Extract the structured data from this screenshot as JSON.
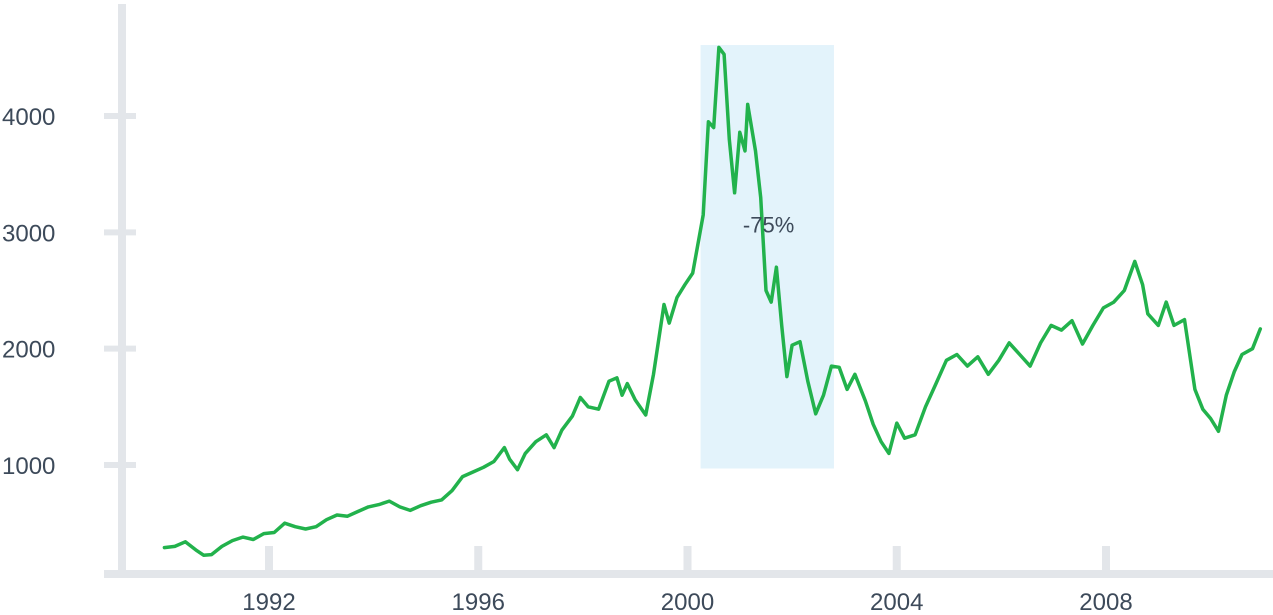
{
  "chart_data": {
    "type": "line",
    "title": "",
    "xlabel": "",
    "ylabel": "",
    "xlim": [
      1989.8,
      2010.4
    ],
    "ylim": [
      0,
      4900
    ],
    "x_ticks": [
      {
        "value": 1992,
        "label": "1992"
      },
      {
        "value": 1996,
        "label": "1996"
      },
      {
        "value": 2000,
        "label": "2000"
      },
      {
        "value": 2004,
        "label": "2004"
      },
      {
        "value": 2008,
        "label": "2008"
      }
    ],
    "y_ticks": [
      {
        "value": 1000,
        "label": "1000"
      },
      {
        "value": 2000,
        "label": "2000"
      },
      {
        "value": 3000,
        "label": "3000"
      },
      {
        "value": 4000,
        "label": "4000"
      }
    ],
    "grid": false,
    "colors": {
      "line": "#22b24c",
      "axis": "#e3e6ea",
      "highlight": "#e3f3fb",
      "text": "#3d4a5a"
    },
    "highlight_region": {
      "x_start": 2000.25,
      "x_end": 2002.8,
      "y_bottom": 970,
      "y_top": 4610,
      "label": "-75%",
      "label_x": 2001.55,
      "label_y": 3000
    },
    "series": [
      {
        "name": "",
        "points": [
          [
            1990.0,
            290
          ],
          [
            1990.2,
            300
          ],
          [
            1990.4,
            340
          ],
          [
            1990.6,
            270
          ],
          [
            1990.75,
            225
          ],
          [
            1990.9,
            230
          ],
          [
            1991.1,
            300
          ],
          [
            1991.3,
            350
          ],
          [
            1991.5,
            380
          ],
          [
            1991.7,
            360
          ],
          [
            1991.9,
            410
          ],
          [
            1992.1,
            420
          ],
          [
            1992.3,
            500
          ],
          [
            1992.5,
            470
          ],
          [
            1992.7,
            450
          ],
          [
            1992.9,
            470
          ],
          [
            1993.1,
            530
          ],
          [
            1993.3,
            570
          ],
          [
            1993.5,
            560
          ],
          [
            1993.7,
            600
          ],
          [
            1993.9,
            640
          ],
          [
            1994.1,
            660
          ],
          [
            1994.3,
            690
          ],
          [
            1994.5,
            640
          ],
          [
            1994.7,
            610
          ],
          [
            1994.9,
            650
          ],
          [
            1995.1,
            680
          ],
          [
            1995.3,
            700
          ],
          [
            1995.5,
            780
          ],
          [
            1995.7,
            900
          ],
          [
            1995.9,
            940
          ],
          [
            1996.1,
            980
          ],
          [
            1996.3,
            1030
          ],
          [
            1996.5,
            1150
          ],
          [
            1996.6,
            1050
          ],
          [
            1996.75,
            960
          ],
          [
            1996.9,
            1100
          ],
          [
            1997.1,
            1200
          ],
          [
            1997.3,
            1260
          ],
          [
            1997.45,
            1150
          ],
          [
            1997.6,
            1300
          ],
          [
            1997.8,
            1420
          ],
          [
            1997.95,
            1580
          ],
          [
            1998.1,
            1500
          ],
          [
            1998.3,
            1480
          ],
          [
            1998.5,
            1720
          ],
          [
            1998.65,
            1750
          ],
          [
            1998.75,
            1600
          ],
          [
            1998.85,
            1700
          ],
          [
            1999.0,
            1560
          ],
          [
            1999.2,
            1430
          ],
          [
            1999.35,
            1780
          ],
          [
            1999.55,
            2380
          ],
          [
            1999.65,
            2220
          ],
          [
            1999.8,
            2440
          ],
          [
            1999.95,
            2550
          ],
          [
            2000.1,
            2650
          ],
          [
            2000.3,
            3150
          ],
          [
            2000.4,
            3950
          ],
          [
            2000.5,
            3900
          ],
          [
            2000.6,
            4590
          ],
          [
            2000.7,
            4530
          ],
          [
            2000.8,
            3800
          ],
          [
            2000.9,
            3340
          ],
          [
            2001.0,
            3860
          ],
          [
            2001.1,
            3700
          ],
          [
            2001.15,
            4100
          ],
          [
            2001.3,
            3700
          ],
          [
            2001.4,
            3300
          ],
          [
            2001.5,
            2500
          ],
          [
            2001.6,
            2400
          ],
          [
            2001.7,
            2700
          ],
          [
            2001.8,
            2200
          ],
          [
            2001.9,
            1760
          ],
          [
            2002.0,
            2030
          ],
          [
            2002.15,
            2060
          ],
          [
            2002.3,
            1720
          ],
          [
            2002.45,
            1440
          ],
          [
            2002.6,
            1600
          ],
          [
            2002.75,
            1850
          ],
          [
            2002.9,
            1840
          ],
          [
            2003.05,
            1650
          ],
          [
            2003.2,
            1780
          ],
          [
            2003.4,
            1550
          ],
          [
            2003.55,
            1350
          ],
          [
            2003.7,
            1200
          ],
          [
            2003.85,
            1100
          ],
          [
            2004.0,
            1360
          ],
          [
            2004.15,
            1230
          ],
          [
            2004.35,
            1260
          ],
          [
            2004.55,
            1500
          ],
          [
            2004.75,
            1700
          ],
          [
            2004.95,
            1900
          ],
          [
            2005.15,
            1950
          ],
          [
            2005.35,
            1850
          ],
          [
            2005.55,
            1930
          ],
          [
            2005.75,
            1780
          ],
          [
            2005.95,
            1900
          ],
          [
            2006.15,
            2050
          ],
          [
            2006.35,
            1950
          ],
          [
            2006.55,
            1850
          ],
          [
            2006.75,
            2050
          ],
          [
            2006.95,
            2200
          ],
          [
            2007.15,
            2160
          ],
          [
            2007.35,
            2240
          ],
          [
            2007.55,
            2040
          ],
          [
            2007.75,
            2200
          ],
          [
            2007.95,
            2350
          ],
          [
            2008.15,
            2400
          ],
          [
            2008.35,
            2500
          ],
          [
            2008.55,
            2750
          ],
          [
            2008.7,
            2550
          ],
          [
            2008.8,
            2300
          ],
          [
            2009.0,
            2200
          ],
          [
            2009.15,
            2400
          ],
          [
            2009.3,
            2200
          ],
          [
            2009.5,
            2250
          ],
          [
            2009.7,
            1650
          ],
          [
            2009.85,
            1480
          ],
          [
            2010.0,
            1400
          ],
          [
            2010.15,
            1290
          ],
          [
            2010.3,
            1600
          ],
          [
            2010.45,
            1800
          ],
          [
            2010.6,
            1950
          ],
          [
            2010.8,
            2000
          ],
          [
            2010.95,
            2170
          ]
        ]
      }
    ]
  }
}
